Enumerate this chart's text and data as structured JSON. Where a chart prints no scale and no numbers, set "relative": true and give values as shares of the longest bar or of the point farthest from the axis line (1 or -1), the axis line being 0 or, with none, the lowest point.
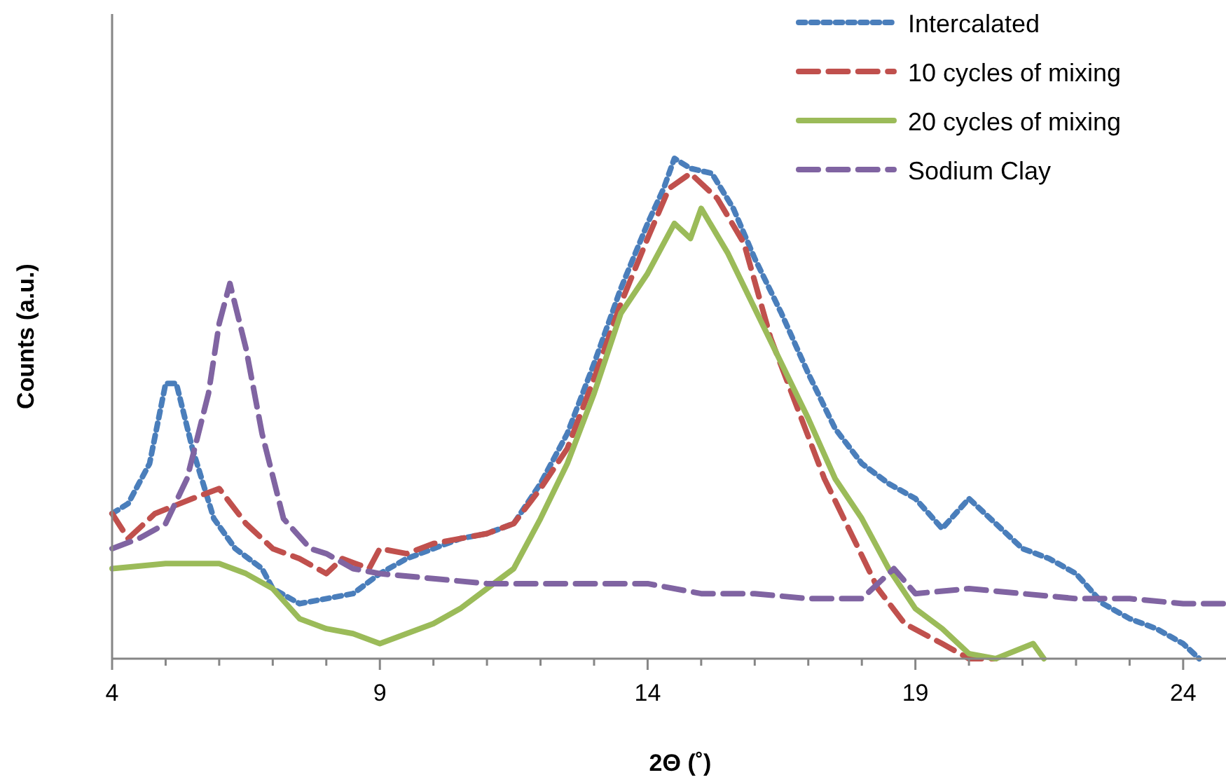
{
  "chart_data": {
    "type": "line",
    "relative": true,
    "xlabel": "2Θ (˚)",
    "ylabel": "Counts (a.u.)",
    "xlim": [
      4,
      24.8
    ],
    "xticks": [
      4,
      {
        "value": 5,
        "label": null
      },
      {
        "value": 6,
        "label": null
      },
      {
        "value": 7,
        "label": null
      },
      {
        "value": 8,
        "label": null
      },
      9,
      {
        "value": 10,
        "label": null
      },
      {
        "value": 11,
        "label": null
      },
      {
        "value": 12,
        "label": null
      },
      {
        "value": 13,
        "label": null
      },
      14,
      {
        "value": 15,
        "label": null
      },
      {
        "value": 16,
        "label": null
      },
      {
        "value": 17,
        "label": null
      },
      {
        "value": 18,
        "label": null
      },
      19,
      {
        "value": 20,
        "label": null
      },
      {
        "value": 21,
        "label": null
      },
      {
        "value": 22,
        "label": null
      },
      {
        "value": 23,
        "label": null
      },
      24
    ],
    "grid": false,
    "legend": "top right",
    "series": [
      {
        "name": "Intercalated",
        "color": "#4a7ebb",
        "line_style": "dotted",
        "x": [
          4,
          4.3,
          4.7,
          5,
          5.2,
          5.5,
          5.9,
          6.3,
          6.8,
          7,
          7.5,
          8,
          8.5,
          9,
          9.5,
          10,
          10.5,
          11,
          11.5,
          12,
          12.5,
          13,
          13.5,
          14,
          14.3,
          14.5,
          14.8,
          15.2,
          15.6,
          16,
          16.5,
          17,
          17.5,
          18,
          18.5,
          19,
          19.5,
          20,
          20.5,
          21,
          21.5,
          22,
          22.5,
          23,
          23.5,
          24,
          24.3
        ],
        "values": [
          0.29,
          0.31,
          0.39,
          0.55,
          0.55,
          0.42,
          0.28,
          0.22,
          0.18,
          0.14,
          0.11,
          0.12,
          0.13,
          0.17,
          0.2,
          0.22,
          0.24,
          0.25,
          0.27,
          0.35,
          0.45,
          0.59,
          0.74,
          0.87,
          0.94,
          1,
          0.98,
          0.97,
          0.9,
          0.8,
          0.69,
          0.57,
          0.46,
          0.39,
          0.35,
          0.32,
          0.26,
          0.32,
          0.27,
          0.22,
          0.2,
          0.17,
          0.11,
          0.08,
          0.06,
          0.03,
          0
        ]
      },
      {
        "name": "10 cycles of mixing",
        "color": "#c0504d",
        "line_style": "dashed",
        "x": [
          4,
          4.3,
          4.8,
          5.5,
          6,
          6.5,
          7,
          7.5,
          8,
          8.3,
          8.8,
          9,
          9.5,
          10,
          10.5,
          11,
          11.5,
          12,
          12.5,
          13,
          13.5,
          14,
          14.4,
          14.8,
          15.3,
          15.8,
          16.3,
          16.8,
          17.3,
          17.8,
          18.3,
          18.8,
          19.5,
          20,
          20.5
        ],
        "values": [
          0.29,
          0.24,
          0.29,
          0.32,
          0.34,
          0.27,
          0.22,
          0.2,
          0.17,
          0.2,
          0.18,
          0.22,
          0.21,
          0.23,
          0.24,
          0.25,
          0.27,
          0.34,
          0.42,
          0.56,
          0.71,
          0.84,
          0.94,
          0.97,
          0.92,
          0.83,
          0.64,
          0.5,
          0.36,
          0.25,
          0.14,
          0.07,
          0.03,
          0,
          0
        ]
      },
      {
        "name": "20 cycles of mixing",
        "color": "#9bbb59",
        "line_style": "solid",
        "x": [
          4,
          5,
          5.5,
          6,
          6.5,
          7,
          7.5,
          8,
          8.5,
          9,
          9.5,
          10,
          10.5,
          11,
          11.5,
          12,
          12.5,
          13,
          13.5,
          14,
          14.5,
          14.8,
          15,
          15.5,
          16,
          16.5,
          17,
          17.5,
          18,
          18.5,
          19,
          19.5,
          20,
          20.5,
          21.2,
          21.4
        ],
        "values": [
          0.18,
          0.19,
          0.19,
          0.19,
          0.17,
          0.14,
          0.08,
          0.06,
          0.05,
          0.03,
          0.05,
          0.07,
          0.1,
          0.14,
          0.18,
          0.28,
          0.39,
          0.53,
          0.69,
          0.77,
          0.87,
          0.84,
          0.9,
          0.81,
          0.7,
          0.59,
          0.48,
          0.36,
          0.28,
          0.18,
          0.1,
          0.06,
          0.01,
          0,
          0.03,
          0
        ]
      },
      {
        "name": "Sodium Clay",
        "color": "#8064a2",
        "line_style": "dashed",
        "x": [
          4,
          4.5,
          5,
          5.4,
          5.8,
          6,
          6.2,
          6.5,
          6.8,
          7.2,
          7.7,
          8,
          8.5,
          9,
          10,
          11,
          12,
          13,
          14,
          15,
          16,
          17,
          18,
          18.6,
          19,
          20,
          21,
          22,
          23,
          24,
          24.8
        ],
        "values": [
          0.22,
          0.24,
          0.27,
          0.36,
          0.53,
          0.67,
          0.75,
          0.62,
          0.45,
          0.28,
          0.22,
          0.21,
          0.18,
          0.17,
          0.16,
          0.15,
          0.15,
          0.15,
          0.15,
          0.13,
          0.13,
          0.12,
          0.12,
          0.18,
          0.13,
          0.14,
          0.13,
          0.12,
          0.12,
          0.11,
          0.11
        ]
      }
    ]
  }
}
